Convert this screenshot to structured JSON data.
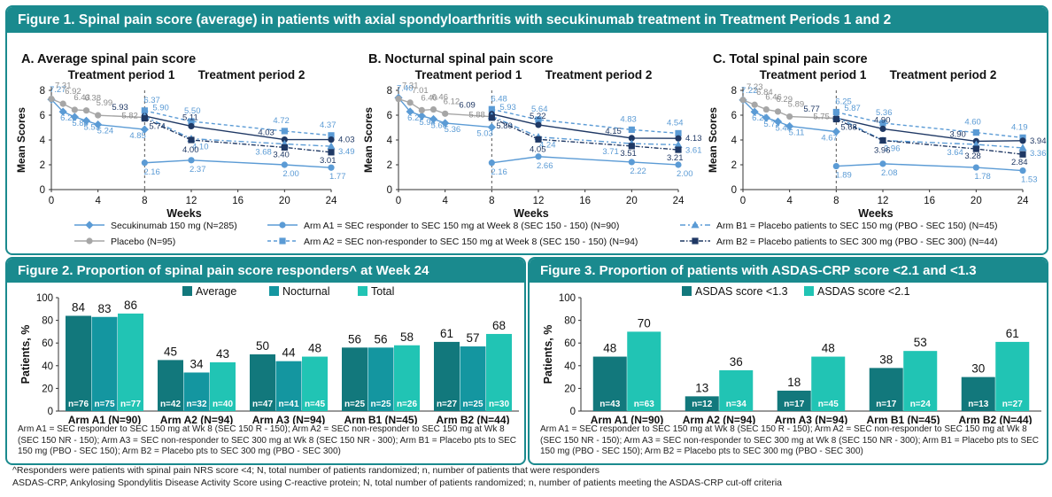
{
  "fig1": {
    "title": "Figure 1. Spinal pain score (average) in patients with axial spondyloarthritis with secukinumab treatment in Treatment Periods 1 and 2",
    "period1": "Treatment period 1",
    "period2": "Treatment period 2",
    "legend": {
      "secukinumab": "Secukinumab 150 mg (N=285)",
      "placebo": "Placebo (N=95)",
      "a1": "Arm A1 = SEC responder to SEC 150 mg at Week 8 (SEC 150 - 150) (N=90)",
      "a2": "Arm A2 = SEC non-responder to SEC 150 mg at Week 8 (SEC 150 - 150) (N=94)",
      "a3": "Arm A3 = SEC non-responder to SEC 300 mg at Week 8 (SEC 150 - 300) (N=94)",
      "b1": "Arm B1 = Placebo patients to SEC 150 mg (PBO - SEC 150) (N=45)",
      "b2": "Arm B2 = Placebo patients to SEC 300 mg (PBO - SEC 300) (N=44)"
    }
  },
  "fig2": {
    "title": "Figure 2. Proportion of spinal pain score responders^ at Week 24",
    "note": "Arm A1 = SEC responder to SEC 150 mg at Wk 8 (SEC 150 R - 150); Arm A2 = SEC non-responder to SEC 150 mg at Wk 8 (SEC 150 NR - 150); Arm A3 = SEC non-responder to SEC 300 mg at Wk 8 (SEC 150 NR - 300); Arm B1 = Placebo pts to SEC 150 mg (PBO - SEC 150); Arm B2 = Placebo pts to SEC 300 mg (PBO - SEC 300)"
  },
  "fig3": {
    "title": "Figure 3. Proportion of patients with ASDAS-CRP score <2.1 and <1.3",
    "note": "Arm A1 = SEC responder to SEC 150 mg at Wk 8 (SEC 150 R - 150); Arm A2 = SEC non-responder to SEC 150 mg at Wk 8 (SEC 150 NR - 150); Arm A3 = SEC non-responder to SEC 300 mg at Wk 8 (SEC 150 NR - 300); Arm B1 = Placebo pts to SEC 150 mg (PBO - SEC 150); Arm B2 = Placebo pts to SEC 300 mg (PBO - SEC 300)"
  },
  "footnotes": {
    "responders": "^Responders were patients with spinal pain NRS score <4; N, total number of patients randomized; n, number of patients that were responders",
    "asdas": "ASDAS-CRP, Ankylosing Spondylitis Disease Activity Score using C-reactive protein; N, total number of patients randomized; n, number of patients meeting the ASDAS-CRP cut-off criteria"
  },
  "colors": {
    "teal_dark": "#1a8a8e",
    "sec_line": "#5b9bd5",
    "placebo": "#a6a6a6",
    "a2": "#5b9bd5",
    "a3": "#1f3864",
    "b2": "#1f3864",
    "bar1": "#12787c",
    "bar2": "#1496a0",
    "bar3": "#21c4b4"
  },
  "chart_data": [
    {
      "type": "line",
      "title": "A. Average spinal pain score",
      "xlabel": "Weeks",
      "ylabel": "Mean Scores",
      "xlim": [
        0,
        24
      ],
      "ylim": [
        0,
        8
      ],
      "xticks": [
        0,
        4,
        8,
        12,
        16,
        20,
        24
      ],
      "yticks": [
        0,
        2,
        4,
        6,
        8
      ],
      "series": [
        {
          "name": "Secukinumab 150 mg (N=285)",
          "key": "secukinumab",
          "x": [
            0,
            1,
            2,
            3,
            4,
            8
          ],
          "values": [
            7.27,
            6.28,
            5.86,
            5.55,
            5.24,
            4.85
          ],
          "labels": [
            "7.27",
            "6.28",
            "5.86",
            "5.55",
            "5.24",
            "4.85"
          ]
        },
        {
          "name": "Placebo (N=95)",
          "key": "placebo",
          "x": [
            0,
            1,
            2,
            3,
            4,
            8
          ],
          "values": [
            7.31,
            6.92,
            6.43,
            6.38,
            5.99,
            5.82
          ],
          "labels": [
            "7.31",
            "6.92",
            "6.43",
            "6.38",
            "5.99",
            "5.82"
          ]
        },
        {
          "name": "Arm A1 = SEC responder to SEC 150 mg at Week 8 (SEC 150 - 150) (N=90)",
          "key": "a1",
          "x": [
            8,
            12,
            20,
            24
          ],
          "values": [
            2.16,
            2.37,
            2.0,
            1.77
          ],
          "labels": [
            "2.16",
            "2.37",
            "2.00",
            "1.77"
          ]
        },
        {
          "name": "Arm A2 = SEC non-responder to SEC 150 mg at Week 8 (SEC 150 - 150) (N=94)",
          "key": "a2",
          "x": [
            8,
            12,
            20,
            24
          ],
          "values": [
            6.37,
            5.5,
            4.72,
            4.37
          ],
          "labels": [
            "6.37",
            "5.50",
            "4.72",
            "4.37"
          ]
        },
        {
          "name": "Arm A3 = SEC non-responder to SEC 300 mg at Week 8 (SEC 150 - 300) (N=94)",
          "key": "a3",
          "x": [
            8,
            12,
            20,
            24
          ],
          "values": [
            5.93,
            5.11,
            4.03,
            4.03
          ],
          "labels": [
            "5.93",
            "5.11",
            "4.03",
            "4.03"
          ]
        },
        {
          "name": "Arm B1 = Placebo patients to SEC 150 mg (PBO - SEC 150) (N=45)",
          "key": "b1",
          "x": [
            8,
            12,
            20,
            24
          ],
          "values": [
            5.9,
            4.1,
            3.68,
            3.49
          ],
          "labels": [
            "5.90",
            "4.10",
            "3.68",
            "3.49"
          ]
        },
        {
          "name": "Arm B2 = Placebo patients to SEC 300 mg (PBO - SEC 300) (N=44)",
          "key": "b2",
          "x": [
            8,
            12,
            20,
            24
          ],
          "values": [
            5.74,
            4.0,
            3.4,
            3.01
          ],
          "labels": [
            "5.74",
            "4.00",
            "3.40",
            "3.01"
          ]
        }
      ]
    },
    {
      "type": "line",
      "title": "B. Nocturnal spinal pain score",
      "xlabel": "Weeks",
      "ylabel": "Mean Scores",
      "xlim": [
        0,
        24
      ],
      "ylim": [
        0,
        8
      ],
      "xticks": [
        0,
        4,
        8,
        12,
        16,
        20,
        24
      ],
      "yticks": [
        0,
        2,
        4,
        6,
        8
      ],
      "series": [
        {
          "name": "Secukinumab 150 mg (N=285)",
          "key": "secukinumab",
          "x": [
            0,
            1,
            2,
            3,
            4,
            8
          ],
          "values": [
            7.4,
            6.29,
            5.94,
            5.68,
            5.36,
            5.03
          ],
          "labels": [
            "7.40",
            "6.29",
            "5.94",
            "5.68",
            "5.36",
            "5.03"
          ]
        },
        {
          "name": "Placebo (N=95)",
          "key": "placebo",
          "x": [
            0,
            1,
            2,
            3,
            4,
            8
          ],
          "values": [
            7.31,
            7.01,
            6.4,
            6.46,
            6.12,
            5.88
          ],
          "labels": [
            "7.31",
            "7.01",
            "6.40",
            "6.46",
            "6.12",
            "5.88"
          ]
        },
        {
          "name": "Arm A1 = SEC responder to SEC 150 mg at Week 8 (SEC 150 - 150) (N=90)",
          "key": "a1",
          "x": [
            8,
            12,
            20,
            24
          ],
          "values": [
            2.16,
            2.66,
            2.22,
            2.0
          ],
          "labels": [
            "2.16",
            "2.66",
            "2.22",
            "2.00"
          ]
        },
        {
          "name": "Arm A2 = SEC non-responder to SEC 150 mg at Week 8 (SEC 150 - 150) (N=94)",
          "key": "a2",
          "x": [
            8,
            12,
            20,
            24
          ],
          "values": [
            6.48,
            5.64,
            4.83,
            4.54
          ],
          "labels": [
            "6.48",
            "5.64",
            "4.83",
            "4.54"
          ]
        },
        {
          "name": "Arm A3 = SEC non-responder to SEC 300 mg at Week 8 (SEC 150 - 300) (N=94)",
          "key": "a3",
          "x": [
            8,
            12,
            20,
            24
          ],
          "values": [
            6.09,
            5.22,
            4.15,
            4.13
          ],
          "labels": [
            "6.09",
            "5.22",
            "4.15",
            "4.13"
          ]
        },
        {
          "name": "Arm B1 = Placebo patients to SEC 150 mg (PBO - SEC 150) (N=45)",
          "key": "b1",
          "x": [
            8,
            12,
            20,
            24
          ],
          "values": [
            5.93,
            4.24,
            3.71,
            3.61
          ],
          "labels": [
            "5.93",
            "4.24",
            "3.71",
            "3.61"
          ]
        },
        {
          "name": "Arm B2 = Placebo patients to SEC 300 mg (PBO - SEC 300) (N=44)",
          "key": "b2",
          "x": [
            8,
            12,
            20,
            24
          ],
          "values": [
            5.8,
            4.05,
            3.51,
            3.21
          ],
          "labels": [
            "5.80",
            "4.05",
            "3.51",
            "3.21"
          ]
        }
      ]
    },
    {
      "type": "line",
      "title": "C. Total spinal pain score",
      "xlabel": "Weeks",
      "ylabel": "Mean Scores",
      "xlim": [
        0,
        24
      ],
      "ylim": [
        0,
        8
      ],
      "xticks": [
        0,
        4,
        8,
        12,
        16,
        20,
        24
      ],
      "yticks": [
        0,
        2,
        4,
        6,
        8
      ],
      "series": [
        {
          "name": "Secukinumab 150 mg (N=285)",
          "key": "secukinumab",
          "x": [
            0,
            1,
            2,
            3,
            4,
            8
          ],
          "values": [
            7.22,
            6.27,
            5.79,
            5.48,
            5.11,
            4.67
          ],
          "labels": [
            "7.22",
            "6.27",
            "5.79",
            "5.48",
            "5.11",
            "4.67"
          ]
        },
        {
          "name": "Placebo (N=95)",
          "key": "placebo",
          "x": [
            0,
            1,
            2,
            3,
            4,
            8
          ],
          "values": [
            7.23,
            6.84,
            6.46,
            6.29,
            5.89,
            5.75
          ],
          "labels": [
            "7.23",
            "6.84",
            "6.46",
            "6.29",
            "5.89",
            "5.75"
          ]
        },
        {
          "name": "Arm A1 = SEC responder to SEC 150 mg at Week 8 (SEC 150 - 150) (N=90)",
          "key": "a1",
          "x": [
            8,
            12,
            20,
            24
          ],
          "values": [
            1.89,
            2.08,
            1.78,
            1.53
          ],
          "labels": [
            "1.89",
            "2.08",
            "1.78",
            "1.53"
          ]
        },
        {
          "name": "Arm A2 = SEC non-responder to SEC 150 mg at Week 8 (SEC 150 - 150) (N=94)",
          "key": "a2",
          "x": [
            8,
            12,
            20,
            24
          ],
          "values": [
            6.25,
            5.36,
            4.6,
            4.19
          ],
          "labels": [
            "6.25",
            "5.36",
            "4.60",
            "4.19"
          ]
        },
        {
          "name": "Arm A3 = SEC non-responder to SEC 300 mg at Week 8 (SEC 150 - 300) (N=94)",
          "key": "a3",
          "x": [
            8,
            12,
            20,
            24
          ],
          "values": [
            5.77,
            4.9,
            3.9,
            3.94
          ],
          "labels": [
            "5.77",
            "4.90",
            "3.90",
            "3.94"
          ]
        },
        {
          "name": "Arm B1 = Placebo patients to SEC 150 mg (PBO - SEC 150) (N=45)",
          "key": "b1",
          "x": [
            8,
            12,
            20,
            24
          ],
          "values": [
            5.87,
            3.96,
            3.64,
            3.36
          ],
          "labels": [
            "5.87",
            "3.96",
            "3.64",
            "3.36"
          ]
        },
        {
          "name": "Arm B2 = Placebo patients to SEC 300 mg (PBO - SEC 300) (N=44)",
          "key": "b2",
          "x": [
            8,
            12,
            20,
            24
          ],
          "values": [
            5.68,
            3.96,
            3.28,
            2.84
          ],
          "labels": [
            "5.68",
            "3.96",
            "3.28",
            "2.84"
          ]
        }
      ]
    },
    {
      "type": "bar",
      "title": "Figure 2. Proportion of spinal pain score responders^ at Week 24",
      "ylabel": "Patients, %",
      "ylim": [
        0,
        100
      ],
      "yticks": [
        0,
        20,
        40,
        60,
        80,
        100
      ],
      "categories": [
        "Arm A1 (N=90)",
        "Arm A2 (N=94)",
        "Arm A3 (N=94)",
        "Arm B1 (N=45)",
        "Arm B2 (N=44)"
      ],
      "legend_position": "top",
      "series": [
        {
          "name": "Average",
          "values": [
            84,
            45,
            50,
            56,
            61
          ],
          "n_labels": [
            "n=76",
            "n=42",
            "n=47",
            "n=25",
            "n=27"
          ]
        },
        {
          "name": "Nocturnal",
          "values": [
            83,
            34,
            44,
            56,
            57
          ],
          "n_labels": [
            "n=75",
            "n=32",
            "n=41",
            "n=25",
            "n=25"
          ]
        },
        {
          "name": "Total",
          "values": [
            86,
            43,
            48,
            58,
            68
          ],
          "n_labels": [
            "n=77",
            "n=40",
            "n=45",
            "n=26",
            "n=30"
          ]
        }
      ]
    },
    {
      "type": "bar",
      "title": "Figure 3. Proportion of patients with ASDAS-CRP score <2.1 and <1.3",
      "ylabel": "Patients, %",
      "ylim": [
        0,
        100
      ],
      "yticks": [
        0,
        20,
        40,
        60,
        80,
        100
      ],
      "categories": [
        "Arm A1 (N=90)",
        "Arm A2 (N=94)",
        "Arm A3 (N=94)",
        "Arm B1 (N=45)",
        "Arm B2 (N=44)"
      ],
      "legend_position": "top",
      "series": [
        {
          "name": "ASDAS score <1.3",
          "values": [
            48,
            13,
            18,
            38,
            30
          ],
          "n_labels": [
            "n=43",
            "n=12",
            "n=17",
            "n=17",
            "n=13"
          ]
        },
        {
          "name": "ASDAS score <2.1",
          "values": [
            70,
            36,
            48,
            53,
            61
          ],
          "n_labels": [
            "n=63",
            "n=34",
            "n=45",
            "n=24",
            "n=27"
          ]
        }
      ]
    }
  ]
}
